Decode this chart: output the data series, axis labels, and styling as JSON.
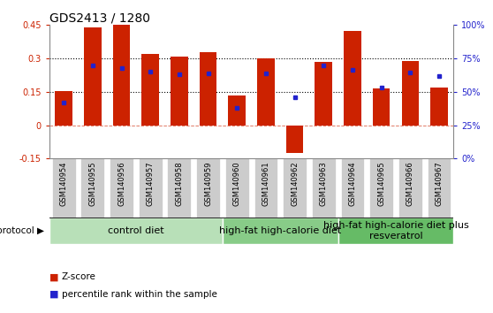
{
  "title": "GDS2413 / 1280",
  "samples": [
    "GSM140954",
    "GSM140955",
    "GSM140956",
    "GSM140957",
    "GSM140958",
    "GSM140959",
    "GSM140960",
    "GSM140961",
    "GSM140962",
    "GSM140963",
    "GSM140964",
    "GSM140965",
    "GSM140966",
    "GSM140967"
  ],
  "z_scores": [
    0.155,
    0.44,
    0.455,
    0.32,
    0.31,
    0.33,
    0.135,
    0.3,
    -0.125,
    0.285,
    0.425,
    0.165,
    0.29,
    0.17
  ],
  "pct_ranks": [
    0.42,
    0.7,
    0.68,
    0.65,
    0.63,
    0.635,
    0.38,
    0.635,
    0.46,
    0.695,
    0.665,
    0.535,
    0.645,
    0.615
  ],
  "bar_color": "#cc2200",
  "dot_color": "#2222cc",
  "ylim": [
    -0.15,
    0.45
  ],
  "yticks_left": [
    -0.15,
    0,
    0.15,
    0.3,
    0.45
  ],
  "yticks_right": [
    0,
    25,
    50,
    75,
    100
  ],
  "hline_dotted": [
    0.15,
    0.3
  ],
  "hline_zero": 0,
  "groups": [
    {
      "label": "control diet",
      "start": 0,
      "end": 6,
      "color": "#b8e0b8"
    },
    {
      "label": "high-fat high-calorie diet",
      "start": 6,
      "end": 10,
      "color": "#88cc88"
    },
    {
      "label": "high-fat high-calorie diet plus\nresveratrol",
      "start": 10,
      "end": 14,
      "color": "#66bb66"
    }
  ],
  "protocol_label": "protocol",
  "legend_items": [
    {
      "label": "Z-score",
      "color": "#cc2200"
    },
    {
      "label": "percentile rank within the sample",
      "color": "#2222cc"
    }
  ],
  "bar_width": 0.6,
  "tick_label_fontsize": 6.0,
  "group_label_fontsize": 8,
  "title_fontsize": 10,
  "bg_color": "#ffffff",
  "xtick_bg": "#cccccc",
  "border_color": "#888888"
}
